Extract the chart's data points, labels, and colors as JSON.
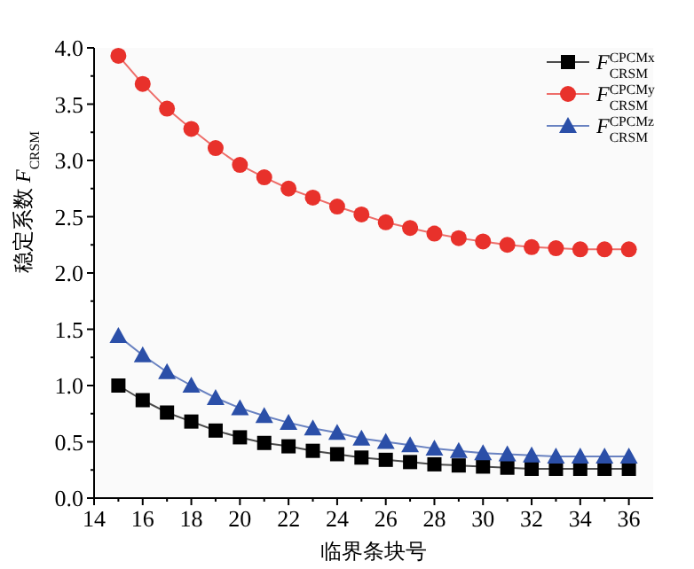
{
  "chart_data": {
    "type": "line",
    "xlabel": "临界条块号",
    "ylabel": "稳定系数 *F*$_{CRSM}$",
    "x": [
      15,
      16,
      17,
      18,
      19,
      20,
      21,
      22,
      23,
      24,
      25,
      26,
      27,
      28,
      29,
      30,
      31,
      32,
      33,
      34,
      35,
      36
    ],
    "xlim": [
      14,
      37
    ],
    "xticks": [
      14,
      16,
      18,
      20,
      22,
      24,
      26,
      28,
      30,
      32,
      34,
      36
    ],
    "ylim": [
      0,
      4
    ],
    "yticks": [
      {
        "value": 0,
        "label": "0.0"
      },
      {
        "value": 0.5,
        "label": "0.5"
      },
      {
        "value": 1,
        "label": "1.0"
      },
      {
        "value": 1.5,
        "label": "1.5"
      },
      {
        "value": 2,
        "label": "2.0"
      },
      {
        "value": 2.5,
        "label": "2.5"
      },
      {
        "value": 3,
        "label": "3.0"
      },
      {
        "value": 3.5,
        "label": "3.5"
      },
      {
        "value": 4,
        "label": "4.0"
      }
    ],
    "legend": "top right",
    "line_style": "solid",
    "series": [
      {
        "name": "*F*$_{CRSM}$$^{CPCMx}$",
        "color": "#000000",
        "marker": "square",
        "values": [
          1.0,
          0.87,
          0.76,
          0.68,
          0.6,
          0.54,
          0.49,
          0.46,
          0.42,
          0.39,
          0.36,
          0.34,
          0.32,
          0.3,
          0.29,
          0.28,
          0.27,
          0.26,
          0.26,
          0.26,
          0.26,
          0.26
        ]
      },
      {
        "name": "*F*$_{CRSM}$$^{CPCMy}$",
        "color": "#e8312b",
        "marker": "circle",
        "values": [
          3.93,
          3.68,
          3.46,
          3.28,
          3.11,
          2.96,
          2.85,
          2.75,
          2.67,
          2.59,
          2.52,
          2.45,
          2.4,
          2.35,
          2.31,
          2.28,
          2.25,
          2.23,
          2.22,
          2.21,
          2.21,
          2.21
        ]
      },
      {
        "name": "*F*$_{CRSM}$$^{CPCMz}$",
        "color": "#2b4fa8",
        "marker": "triangle",
        "values": [
          1.44,
          1.27,
          1.12,
          1.0,
          0.89,
          0.8,
          0.73,
          0.67,
          0.62,
          0.58,
          0.53,
          0.5,
          0.47,
          0.44,
          0.42,
          0.4,
          0.39,
          0.38,
          0.37,
          0.37,
          0.37,
          0.37
        ]
      }
    ]
  }
}
